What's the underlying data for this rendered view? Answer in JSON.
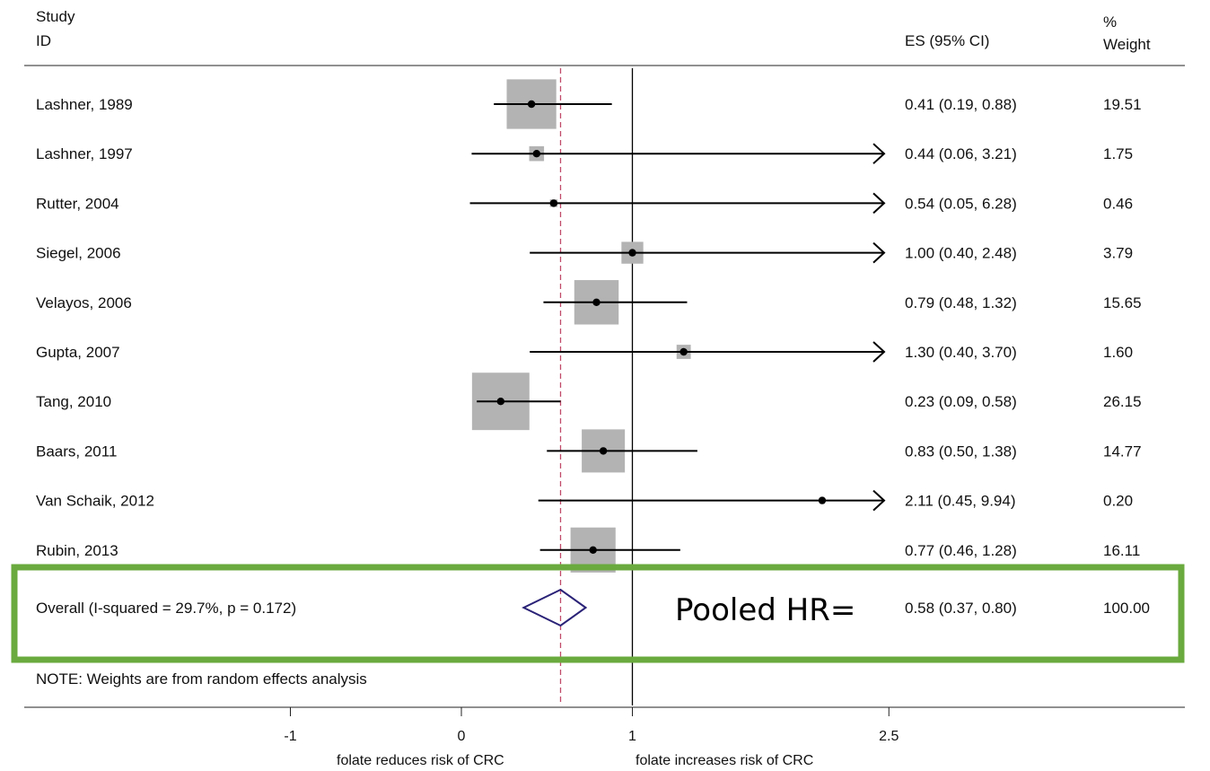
{
  "header": {
    "study_line1": "Study",
    "study_line2": "ID",
    "es_label": "ES (95% CI)",
    "weight_line1": "%",
    "weight_line2": "Weight"
  },
  "note": "NOTE: Weights are from random effects analysis",
  "callout": "Pooled HR=",
  "colors": {
    "box": "#b3b3b3",
    "diamond": "#2a2277",
    "null_line": "#000000",
    "pooled_line": "#c04a6a",
    "highlight": "#6aaa3e"
  },
  "chart_data": {
    "type": "forest",
    "x_ticks": [
      {
        "value": -1,
        "label": "-1"
      },
      {
        "value": 0,
        "label": "0"
      },
      {
        "value": 1,
        "label": "1"
      },
      {
        "value": 2.5,
        "label": "2.5"
      }
    ],
    "xlim": [
      -2.0,
      3.4
    ],
    "null_value": 1,
    "xlabel_left": "folate reduces risk of CRC",
    "xlabel_right": "folate increases risk of CRC",
    "studies": [
      {
        "id": "Lashner, 1989",
        "es": 0.41,
        "lo": 0.19,
        "hi": 0.88,
        "es_text": "0.41 (0.19, 0.88)",
        "weight": 19.51,
        "weight_text": "19.51"
      },
      {
        "id": "Lashner, 1997",
        "es": 0.44,
        "lo": 0.06,
        "hi": 3.21,
        "es_text": "0.44 (0.06, 3.21)",
        "weight": 1.75,
        "weight_text": "1.75"
      },
      {
        "id": "Rutter, 2004",
        "es": 0.54,
        "lo": 0.05,
        "hi": 6.28,
        "es_text": "0.54 (0.05, 6.28)",
        "weight": 0.46,
        "weight_text": "0.46"
      },
      {
        "id": "Siegel, 2006",
        "es": 1.0,
        "lo": 0.4,
        "hi": 2.48,
        "es_text": "1.00 (0.40, 2.48)",
        "weight": 3.79,
        "weight_text": "3.79"
      },
      {
        "id": "Velayos, 2006",
        "es": 0.79,
        "lo": 0.48,
        "hi": 1.32,
        "es_text": "0.79 (0.48, 1.32)",
        "weight": 15.65,
        "weight_text": "15.65"
      },
      {
        "id": "Gupta, 2007",
        "es": 1.3,
        "lo": 0.4,
        "hi": 3.7,
        "es_text": "1.30 (0.40, 3.70)",
        "weight": 1.6,
        "weight_text": "1.60"
      },
      {
        "id": "Tang, 2010",
        "es": 0.23,
        "lo": 0.09,
        "hi": 0.58,
        "es_text": "0.23 (0.09, 0.58)",
        "weight": 26.15,
        "weight_text": "26.15"
      },
      {
        "id": "Baars, 2011",
        "es": 0.83,
        "lo": 0.5,
        "hi": 1.38,
        "es_text": "0.83 (0.50, 1.38)",
        "weight": 14.77,
        "weight_text": "14.77"
      },
      {
        "id": "Van Schaik, 2012",
        "es": 2.11,
        "lo": 0.45,
        "hi": 9.94,
        "es_text": "2.11 (0.45, 9.94)",
        "weight": 0.2,
        "weight_text": "0.20"
      },
      {
        "id": "Rubin, 2013",
        "es": 0.77,
        "lo": 0.46,
        "hi": 1.28,
        "es_text": "0.77 (0.46, 1.28)",
        "weight": 16.11,
        "weight_text": "16.11"
      }
    ],
    "overall": {
      "id": "Overall  (I-squared = 29.7%, p = 0.172)",
      "es": 0.58,
      "lo": 0.37,
      "hi": 0.8,
      "es_text": "0.58 (0.37, 0.80)",
      "weight_text": "100.00"
    }
  }
}
